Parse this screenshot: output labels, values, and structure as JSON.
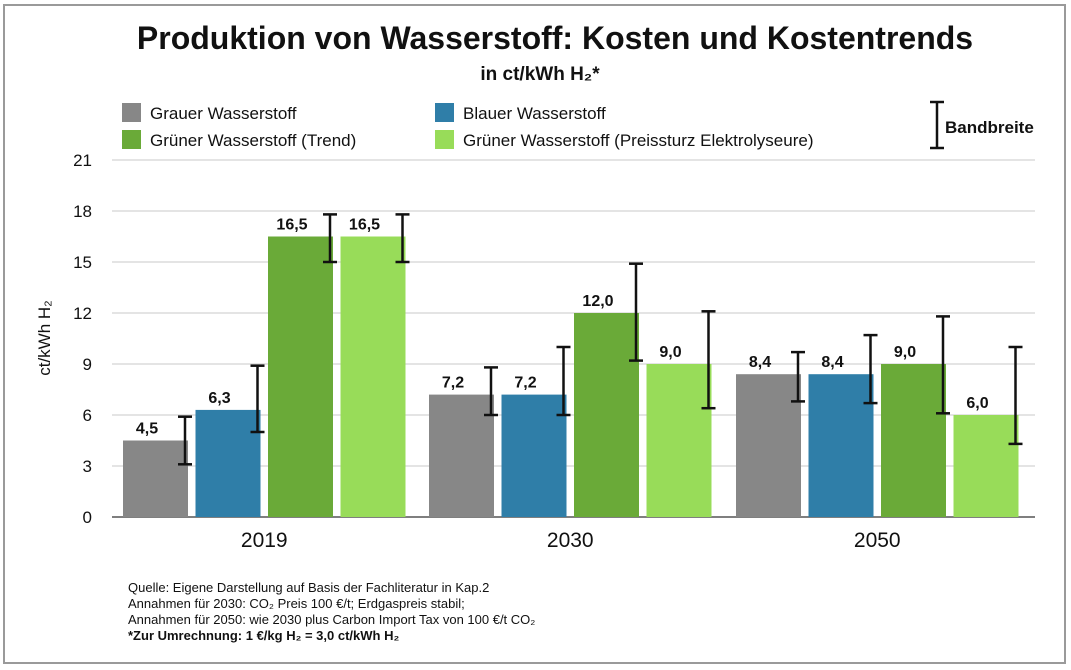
{
  "title": "Produktion von Wasserstoff: Kosten und Kostentrends",
  "subtitle": "in ct/kWh H₂*",
  "legend": {
    "range_label": "Bandbreite"
  },
  "colors": {
    "grau": "#878787",
    "blau": "#2f7ea8",
    "gruen_trend": "#6aaa38",
    "gruen_preissturz": "#98dc59"
  },
  "notes": [
    "Quelle: Eigene Darstellung auf Basis der Fachliteratur in Kap.2",
    "Annahmen für 2030: CO₂ Preis 100 €/t; Erdgaspreis stabil;",
    "Annahmen für 2050: wie 2030 plus Carbon Import Tax von 100 €/t CO₂"
  ],
  "conversion_note": "*Zur Umrechnung: 1 €/kg H₂ = 3,0 ct/kWh H₂",
  "chart_data": {
    "type": "bar",
    "title": "Produktion von Wasserstoff: Kosten und Kostentrends",
    "subtitle": "in ct/kWh H₂*",
    "xlabel": "",
    "ylabel": "ct/kWh H₂",
    "ylim": [
      0,
      21
    ],
    "yticks": [
      0,
      3,
      6,
      9,
      12,
      15,
      18,
      21
    ],
    "grid": true,
    "legend_position": "top",
    "categories": [
      "2019",
      "2030",
      "2050"
    ],
    "series": [
      {
        "name": "Grauer Wasserstoff",
        "color": "#878787",
        "values": [
          4.5,
          7.2,
          8.4
        ],
        "labels": [
          "4,5",
          "7,2",
          "8,4"
        ],
        "range_low": [
          3.1,
          6.0,
          6.8
        ],
        "range_high": [
          5.9,
          8.8,
          9.7
        ]
      },
      {
        "name": "Blauer Wasserstoff",
        "color": "#2f7ea8",
        "values": [
          6.3,
          7.2,
          8.4
        ],
        "labels": [
          "6,3",
          "7,2",
          "8,4"
        ],
        "range_low": [
          5.0,
          6.0,
          6.7
        ],
        "range_high": [
          8.9,
          10.0,
          10.7
        ]
      },
      {
        "name": "Grüner Wasserstoff (Trend)",
        "color": "#6aaa38",
        "values": [
          16.5,
          12.0,
          9.0
        ],
        "labels": [
          "16,5",
          "12,0",
          "9,0"
        ],
        "range_low": [
          15.0,
          9.2,
          6.1
        ],
        "range_high": [
          17.8,
          14.9,
          11.8
        ]
      },
      {
        "name": "Grüner Wasserstoff (Preissturz Elektrolyseure)",
        "color": "#98dc59",
        "values": [
          16.5,
          9.0,
          6.0
        ],
        "labels": [
          "16,5",
          "9,0",
          "6,0"
        ],
        "range_low": [
          15.0,
          6.4,
          4.3
        ],
        "range_high": [
          17.8,
          12.1,
          10.0
        ]
      }
    ]
  }
}
